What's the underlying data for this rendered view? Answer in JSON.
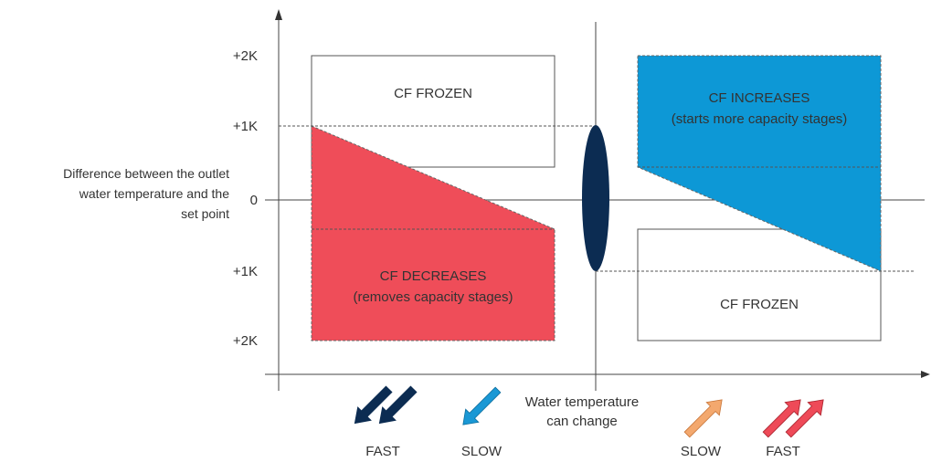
{
  "y_axis": {
    "label_lines": [
      "Difference between the outlet",
      "water temperature and the",
      "set point"
    ],
    "ticks": [
      "+2K",
      "+1K",
      "0",
      "+1K",
      "+2K"
    ]
  },
  "zones": {
    "upper_left": {
      "label": "CF FROZEN"
    },
    "upper_right": {
      "line1": "CF INCREASES",
      "line2": "(starts more capacity stages)"
    },
    "lower_left": {
      "line1": "CF DECREASES",
      "line2": "(removes capacity stages)"
    },
    "lower_right": {
      "label": "CF FROZEN"
    }
  },
  "arrows_note": {
    "line1": "Water temperature",
    "line2": "can change"
  },
  "arrow_labels": {
    "fast_down": "FAST",
    "slow_down": "SLOW",
    "slow_up": "SLOW",
    "fast_up": "FAST"
  },
  "colors": {
    "increase_zone": "#0d98d6",
    "decrease_zone": "#ef4d59",
    "neutral_ellipse": "#0c2c52",
    "fast_down_arrow": "#0c2c52",
    "slow_down_arrow": "#1a98d5",
    "slow_up_arrow": "#f3a86e",
    "fast_up_arrow": "#ee4a58"
  }
}
